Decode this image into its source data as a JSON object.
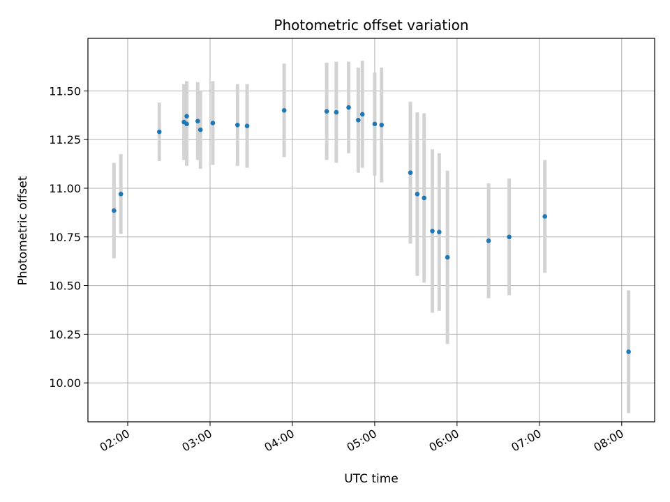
{
  "chart_data": {
    "type": "scatter",
    "title": "Photometric offset variation",
    "xlabel": "UTC time",
    "ylabel": "Photometric offset",
    "x_ticks": [
      "02:00",
      "03:00",
      "04:00",
      "05:00",
      "06:00",
      "07:00",
      "08:00"
    ],
    "y_ticks": [
      "10.00",
      "10.25",
      "10.50",
      "10.75",
      "11.00",
      "11.25",
      "11.50"
    ],
    "xlim": [
      "01:31",
      "08:24"
    ],
    "ylim": [
      9.8,
      11.77
    ],
    "grid": true,
    "x_tick_rotation_deg": 30,
    "series": [
      {
        "marker_color": "#1f77b4",
        "errorbar_color": "#d3d3d3",
        "points": [
          {
            "x": "01:50",
            "y": 10.885,
            "err": 0.245
          },
          {
            "x": "01:55",
            "y": 10.97,
            "err": 0.205
          },
          {
            "x": "02:23",
            "y": 11.29,
            "err": 0.15
          },
          {
            "x": "02:41",
            "y": 11.34,
            "err": 0.195
          },
          {
            "x": "02:43",
            "y": 11.33,
            "err": 0.215
          },
          {
            "x": "02:43",
            "y": 11.37,
            "err": 0.18
          },
          {
            "x": "02:51",
            "y": 11.345,
            "err": 0.2
          },
          {
            "x": "02:53",
            "y": 11.3,
            "err": 0.2
          },
          {
            "x": "03:02",
            "y": 11.335,
            "err": 0.215
          },
          {
            "x": "03:20",
            "y": 11.325,
            "err": 0.21
          },
          {
            "x": "03:27",
            "y": 11.32,
            "err": 0.215
          },
          {
            "x": "03:54",
            "y": 11.4,
            "err": 0.24
          },
          {
            "x": "04:25",
            "y": 11.395,
            "err": 0.25
          },
          {
            "x": "04:32",
            "y": 11.39,
            "err": 0.26
          },
          {
            "x": "04:41",
            "y": 11.415,
            "err": 0.235
          },
          {
            "x": "04:48",
            "y": 11.35,
            "err": 0.27
          },
          {
            "x": "04:51",
            "y": 11.38,
            "err": 0.275
          },
          {
            "x": "05:00",
            "y": 11.33,
            "err": 0.265
          },
          {
            "x": "05:05",
            "y": 11.325,
            "err": 0.295
          },
          {
            "x": "05:26",
            "y": 11.08,
            "err": 0.365
          },
          {
            "x": "05:31",
            "y": 10.97,
            "err": 0.42
          },
          {
            "x": "05:36",
            "y": 10.95,
            "err": 0.435
          },
          {
            "x": "05:42",
            "y": 10.78,
            "err": 0.42
          },
          {
            "x": "05:47",
            "y": 10.775,
            "err": 0.405
          },
          {
            "x": "05:53",
            "y": 10.645,
            "err": 0.445
          },
          {
            "x": "06:23",
            "y": 10.73,
            "err": 0.295
          },
          {
            "x": "06:38",
            "y": 10.75,
            "err": 0.3
          },
          {
            "x": "07:04",
            "y": 10.855,
            "err": 0.29
          },
          {
            "x": "08:05",
            "y": 10.16,
            "err": 0.315
          }
        ]
      }
    ]
  }
}
